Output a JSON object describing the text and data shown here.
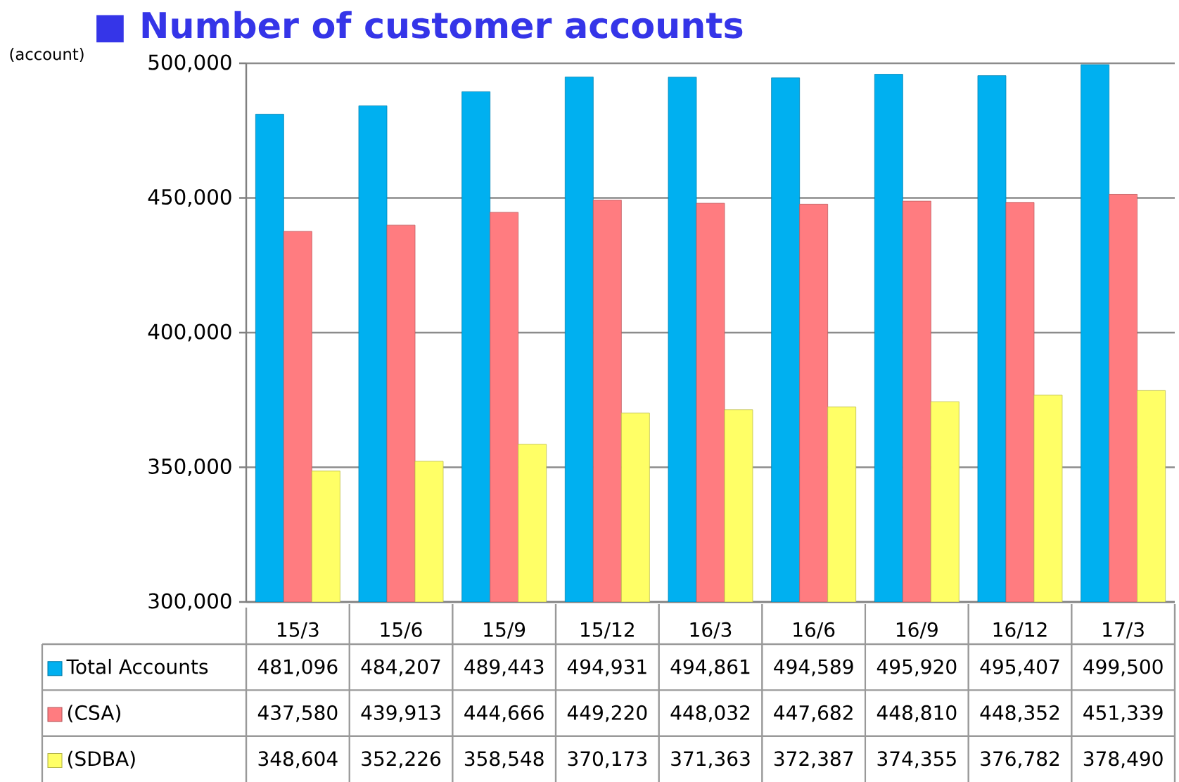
{
  "chart_data": {
    "type": "bar",
    "title": "■ Number of customer accounts",
    "ylabel": "(account)",
    "categories": [
      "15/3",
      "15/6",
      "15/9",
      "15/12",
      "16/3",
      "16/6",
      "16/9",
      "16/12",
      "17/3"
    ],
    "series": [
      {
        "name": "Total Accounts",
        "color": "#00b0f0",
        "values": [
          481096,
          484207,
          489443,
          494931,
          494861,
          494589,
          495920,
          495407,
          499500
        ],
        "value_labels": [
          "481,096",
          "484,207",
          "489,443",
          "494,931",
          "494,861",
          "494,589",
          "495,920",
          "495,407",
          "499,500"
        ]
      },
      {
        "name": "(CSA)",
        "color": "#ff7c80",
        "values": [
          437580,
          439913,
          444666,
          449220,
          448032,
          447682,
          448810,
          448352,
          451339
        ],
        "value_labels": [
          "437,580",
          "439,913",
          "444,666",
          "449,220",
          "448,032",
          "447,682",
          "448,810",
          "448,352",
          "451,339"
        ]
      },
      {
        "name": "(SDBA)",
        "color": "#ffff66",
        "values": [
          348604,
          352226,
          358548,
          370173,
          371363,
          372387,
          374355,
          376782,
          378490
        ],
        "value_labels": [
          "348,604",
          "352,226",
          "358,548",
          "370,173",
          "371,363",
          "372,387",
          "374,355",
          "376,782",
          "378,490"
        ]
      }
    ],
    "ylim": [
      300000,
      500000
    ],
    "yticks": [
      {
        "value": 300000,
        "label": "300,000"
      },
      {
        "value": 350000,
        "label": "350,000"
      },
      {
        "value": 400000,
        "label": "400,000"
      },
      {
        "value": 450000,
        "label": "450,000"
      },
      {
        "value": 500000,
        "label": "500,000"
      }
    ],
    "grid": "y",
    "legend": "bottom"
  }
}
